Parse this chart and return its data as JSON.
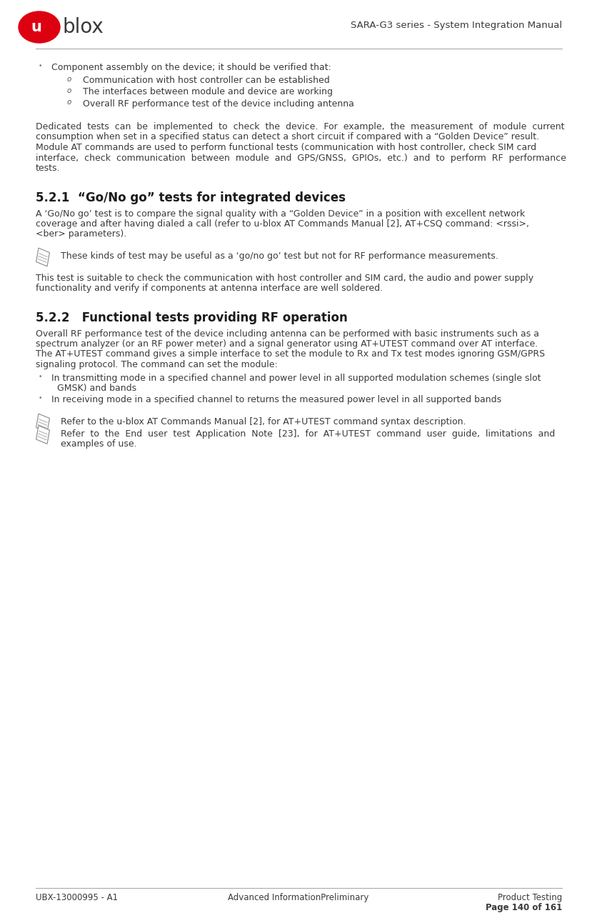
{
  "header_title": "SARA-G3 series - System Integration Manual",
  "footer_left": "UBX-13000995 - A1",
  "footer_center": "Advanced InformationPreliminary",
  "footer_right": "Product Testing",
  "footer_page": "Page 140 of 161",
  "bg_color": "#ffffff",
  "text_color": "#3a3a3a",
  "dark_color": "#2e2e2e",
  "line_color": "#bbbbbb",
  "section_521_title": "5.2.1  “Go/No go” tests for integrated devices",
  "section_522_title": "5.2.2   Functional tests providing RF operation",
  "bullet1": "Component assembly on the device; it should be verified that:",
  "sub_bullets": [
    "Communication with host controller can be established",
    "The interfaces between module and device are working",
    "Overall RF performance test of the device including antenna"
  ],
  "para1_l1": "Dedicated  tests  can  be  implemented  to  check  the  device.  For  example,  the  measurement  of  module  current",
  "para1_l2": "consumption when set in a specified status can detect a short circuit if compared with a “Golden Device” result.",
  "para2_l1": "Module AT commands are used to perform functional tests (communication with host controller, check SIM card",
  "para2_l2": "interface,  check  communication  between  module  and  GPS/GNSS,  GPIOs,  etc.)  and  to  perform  RF  performance",
  "para2_l3": "tests.",
  "s521_p1_l1": "A ‘Go/No go’ test is to compare the signal quality with a “Golden Device” in a position with excellent network",
  "s521_p1_l2": "coverage and after having dialed a call (refer to u-blox AT Commands Manual [2], AT+CSQ command: <rssi>,",
  "s521_p1_l3": "<ber> parameters).",
  "note1": "These kinds of test may be useful as a ‘go/no go’ test but not for RF performance measurements.",
  "s521_p2_l1": "This test is suitable to check the communication with host controller and SIM card, the audio and power supply",
  "s521_p2_l2": "functionality and verify if components at antenna interface are well soldered.",
  "s522_p1_l1": "Overall RF performance test of the device including antenna can be performed with basic instruments such as a",
  "s522_p1_l2": "spectrum analyzer (or an RF power meter) and a signal generator using AT+UTEST command over AT interface.",
  "s522_p2_l1": "The AT+UTEST command gives a simple interface to set the module to Rx and Tx test modes ignoring GSM/GPRS",
  "s522_p2_l2": "signaling protocol. The command can set the module:",
  "b2_l1": "In transmitting mode in a specified channel and power level in all supported modulation schemes (single slot",
  "b2_l2": "GMSK) and bands",
  "b3": "In receiving mode in a specified channel to returns the measured power level in all supported bands",
  "note2": "Refer to the u-blox AT Commands Manual [2], for AT+UTEST command syntax description.",
  "note3_l1": "Refer  to  the  End  user  test  Application  Note  [23],  for  AT+UTEST  command  user  guide,  limitations  and",
  "note3_l2": "examples of use."
}
